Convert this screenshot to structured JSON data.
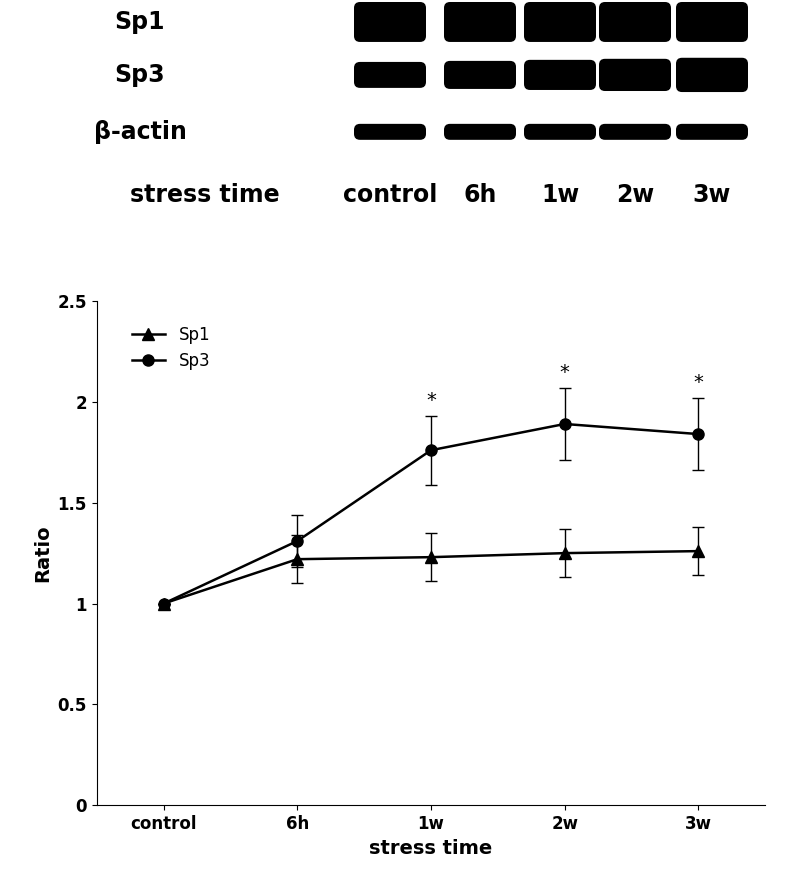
{
  "chart_data": {
    "type": "line",
    "categories": [
      "control",
      "6h",
      "1w",
      "2w",
      "3w"
    ],
    "series": [
      {
        "name": "Sp1",
        "color": "#000000",
        "marker": "triangle",
        "line_style": "solid",
        "values": [
          1.0,
          1.22,
          1.23,
          1.25,
          1.26
        ],
        "errors": [
          0,
          0.12,
          0.12,
          0.12,
          0.12
        ]
      },
      {
        "name": "Sp3",
        "color": "#000000",
        "marker": "circle",
        "line_style": "solid",
        "values": [
          1.0,
          1.31,
          1.76,
          1.89,
          1.84
        ],
        "errors": [
          0,
          0.13,
          0.17,
          0.18,
          0.18
        ]
      }
    ],
    "annotations": [
      {
        "category": "1w",
        "series": "Sp3",
        "text": "*"
      },
      {
        "category": "2w",
        "series": "Sp3",
        "text": "*"
      },
      {
        "category": "3w",
        "series": "Sp3",
        "text": "*"
      }
    ],
    "x_label": "stress time",
    "y_label": "Ratio",
    "ylim": [
      0,
      2.5
    ],
    "yticks": [
      0,
      0.5,
      1,
      1.5,
      2,
      2.5
    ],
    "legend": "upper left",
    "grid": false
  },
  "blot": {
    "rows": [
      "Sp1",
      "Sp3",
      "β-actin"
    ],
    "lane_title": "stress time",
    "lanes": [
      "control",
      "6h",
      "1w",
      "2w",
      "3w"
    ]
  }
}
